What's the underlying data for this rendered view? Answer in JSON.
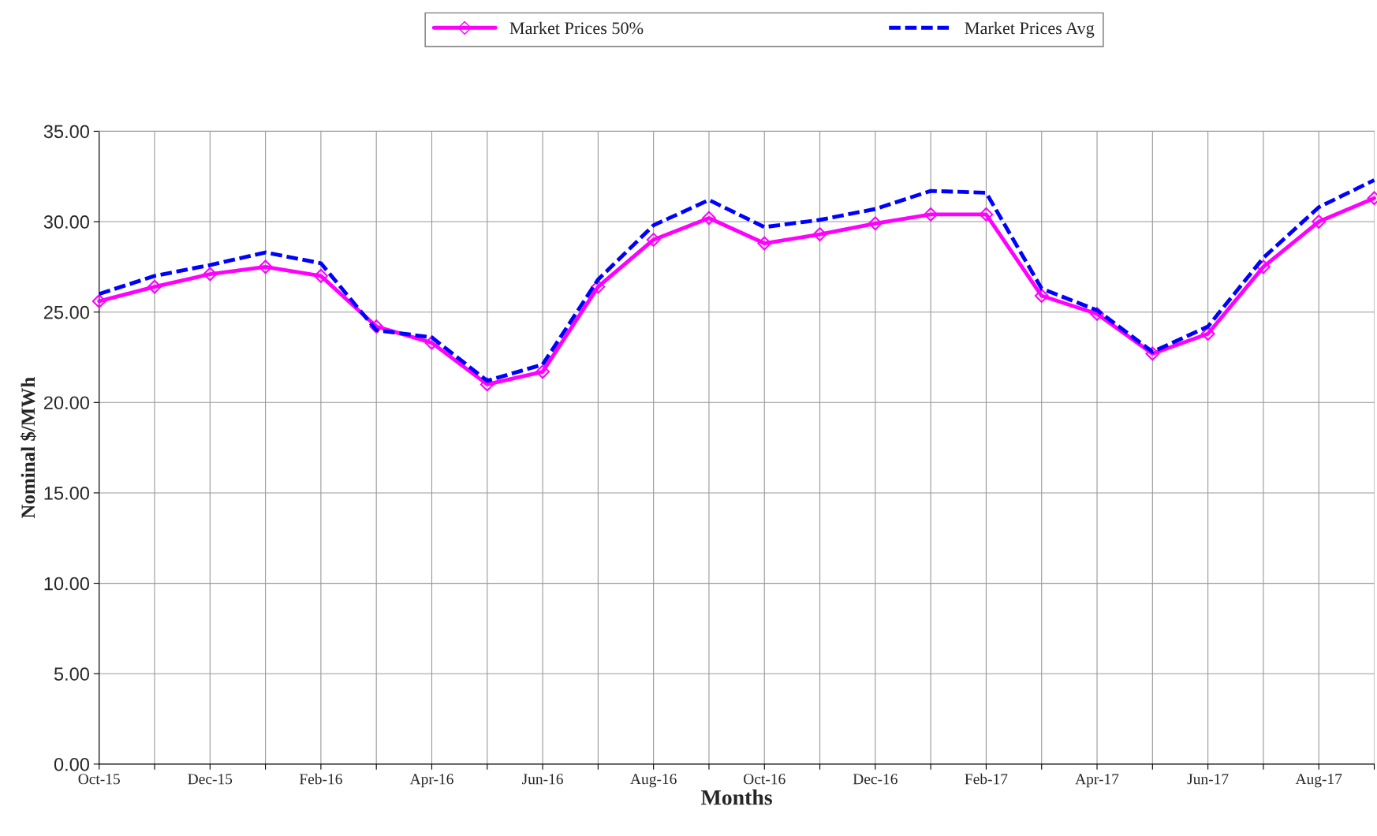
{
  "chart_data": {
    "type": "line",
    "xlabel": "Months",
    "ylabel": "Nominal $/MWh",
    "categories": [
      "Oct-15",
      null,
      "Dec-15",
      null,
      "Feb-16",
      null,
      "Apr-16",
      null,
      "Jun-16",
      null,
      "Aug-16",
      null,
      "Oct-16",
      null,
      "Dec-16",
      null,
      "Feb-17",
      null,
      "Apr-17",
      null,
      "Jun-17",
      null,
      "Aug-17",
      null
    ],
    "series": [
      {
        "name": "Market Prices 50%",
        "color": "#ff00ff",
        "marker": "diamond",
        "line_style": "solid",
        "values": [
          25.6,
          26.4,
          27.1,
          27.5,
          27.0,
          24.2,
          23.3,
          21.0,
          21.7,
          26.4,
          29.0,
          30.2,
          28.8,
          29.3,
          29.9,
          30.4,
          30.4,
          25.9,
          24.9,
          22.7,
          23.8,
          27.5,
          30.0,
          31.3
        ]
      },
      {
        "name": "Market Prices Avg",
        "color": "#0000ff",
        "marker": "none",
        "line_style": "dashed",
        "values": [
          26.0,
          27.0,
          27.6,
          28.3,
          27.7,
          24.0,
          23.6,
          21.2,
          22.1,
          26.8,
          29.8,
          31.2,
          29.7,
          30.1,
          30.7,
          31.7,
          31.6,
          26.3,
          25.1,
          22.8,
          24.2,
          28.0,
          30.8,
          32.3
        ]
      }
    ],
    "ylim": [
      0,
      35
    ],
    "yticks": [
      {
        "value": 0,
        "label": "0.00"
      },
      {
        "value": 5,
        "label": "5.00"
      },
      {
        "value": 10,
        "label": "10.00"
      },
      {
        "value": 15,
        "label": "15.00"
      },
      {
        "value": 20,
        "label": "20.00"
      },
      {
        "value": 25,
        "label": "25.00"
      },
      {
        "value": 30,
        "label": "30.00"
      },
      {
        "value": 35,
        "label": "35.00"
      }
    ],
    "grid": true,
    "legend": "top"
  }
}
